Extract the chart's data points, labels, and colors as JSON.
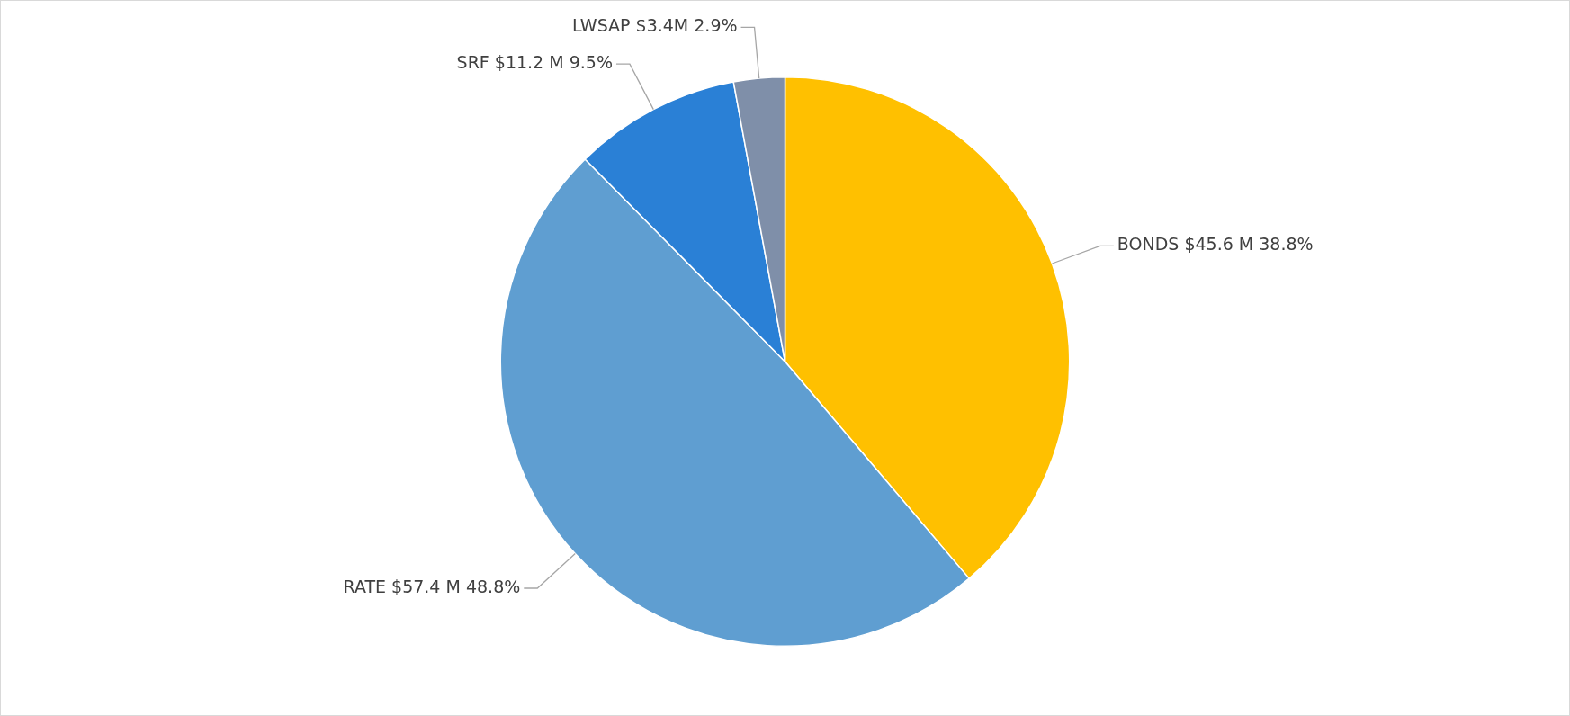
{
  "chart_data": {
    "type": "pie",
    "categories": [
      "BONDS",
      "RATE",
      "SRF",
      "LWSAP"
    ],
    "values": [
      38.8,
      48.8,
      9.5,
      2.9
    ],
    "value_labels": [
      "$45.6 M 38.8%",
      "$57.4 M 48.8%",
      "$11.2 M 9.5%",
      "$3.4M 2.9%"
    ],
    "colors": [
      "#ffc000",
      "#5f9ed1",
      "#2a80d6",
      "#7f8fa9"
    ],
    "legend": false
  }
}
